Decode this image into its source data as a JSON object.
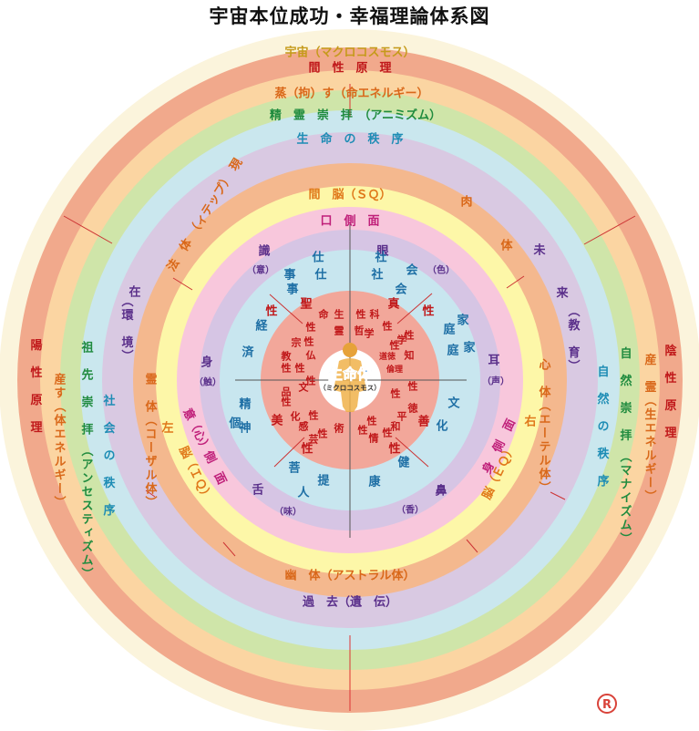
{
  "title": "宇宙本位成功・幸福理論体系図",
  "registered_mark": "R",
  "rings": [
    {
      "key": "ring1",
      "color": "#fbf4dc"
    },
    {
      "key": "ring2",
      "color": "#f1a98c"
    },
    {
      "key": "ring3",
      "color": "#fbd5a2"
    },
    {
      "key": "ring4",
      "color": "#cfe5a9"
    },
    {
      "key": "ring5",
      "color": "#cae7ee"
    },
    {
      "key": "ring6",
      "color": "#d9c9e2"
    },
    {
      "key": "ring7",
      "color": "#f4b88e"
    },
    {
      "key": "ring8",
      "color": "#fdf7a8"
    },
    {
      "key": "ring9",
      "color": "#f8c7dc"
    },
    {
      "key": "ring10",
      "color": "#d6c5e4"
    },
    {
      "key": "ring11",
      "color": "#c8e6ef"
    },
    {
      "key": "ring12",
      "color": "#f2a79a"
    },
    {
      "key": "core",
      "color": "#ffffff"
    }
  ],
  "center": {
    "main": "生命体",
    "sub": "（ミクロコスモス）"
  },
  "labels": [
    {
      "text": "宇宙（マクロコスモス）",
      "color": "#c59a1a",
      "sz": 13
    },
    {
      "text": "間　性　原　理",
      "color": "#c0181a",
      "sz": 13
    },
    {
      "text": "蒸（拘）す（命エネルギー）",
      "color": "#d9681a",
      "sz": 13
    },
    {
      "text": "精　霊　崇　拝　（アニミズム）",
      "color": "#1f8b3e",
      "sz": 13
    },
    {
      "text": "生　命　の　秩　序",
      "color": "#1e8db5",
      "sz": 13
    },
    {
      "text": "陽　性　原　理",
      "color": "#c0181a",
      "sz": 13
    },
    {
      "text": "産す（体エネルギー）",
      "color": "#d9681a",
      "sz": 13
    },
    {
      "text": "祖　先　崇　拝　（アンセスティズム）",
      "color": "#1f8b3e",
      "sz": 13
    },
    {
      "text": "社　会　の　秩　序",
      "color": "#1e8db5",
      "sz": 13
    },
    {
      "text": "陰　性　原　理",
      "color": "#c0181a",
      "sz": 13
    },
    {
      "text": "産　霊（生エネルギー）",
      "color": "#d9681a",
      "sz": 13
    },
    {
      "text": "自　然　崇　拝　（マナイズム）",
      "color": "#1f8b3e",
      "sz": 13
    },
    {
      "text": "自　然　の　秩　序",
      "color": "#1e8db5",
      "sz": 13
    },
    {
      "text": "法　体　（ィテップ）　現",
      "color": "#d9681a",
      "sz": 13
    },
    {
      "text": "在",
      "color": "#5a2f8a",
      "sz": 13
    },
    {
      "text": "（環　境）",
      "color": "#5a2f8a",
      "sz": 13
    },
    {
      "text": "肉",
      "color": "#d9681a",
      "sz": 13
    },
    {
      "text": "体",
      "color": "#d9681a",
      "sz": 13
    },
    {
      "text": "未",
      "color": "#5a2f8a",
      "sz": 13
    },
    {
      "text": "来",
      "color": "#5a2f8a",
      "sz": 13
    },
    {
      "text": "（教　育）",
      "color": "#5a2f8a",
      "sz": 13
    },
    {
      "text": "間　脳（ＳＱ）",
      "color": "#e0781a",
      "sz": 13
    },
    {
      "text": "口　側　面",
      "color": "#c0207a",
      "sz": 13
    },
    {
      "text": "霊　体（コーザル体）",
      "color": "#d9681a",
      "sz": 13
    },
    {
      "text": "脳（ＩＱ）",
      "color": "#e0781a",
      "sz": 13
    },
    {
      "text": "左",
      "color": "#e0781a",
      "sz": 13
    },
    {
      "text": "身",
      "color": "#5a2f8a",
      "sz": 13
    },
    {
      "text": "（触）",
      "color": "#5a2f8a",
      "sz": 10
    },
    {
      "text": "意（心）側　面",
      "color": "#c0207a",
      "sz": 13
    },
    {
      "text": "心　体（エーテル体）",
      "color": "#d9681a",
      "sz": 13
    },
    {
      "text": "脳（ＥＱ）",
      "color": "#e0781a",
      "sz": 13
    },
    {
      "text": "右",
      "color": "#e0781a",
      "sz": 13
    },
    {
      "text": "耳",
      "color": "#5a2f8a",
      "sz": 13
    },
    {
      "text": "（声）",
      "color": "#5a2f8a",
      "sz": 10
    },
    {
      "text": "身　側　面",
      "color": "#c0207a",
      "sz": 13
    },
    {
      "text": "幽　体（アストラル体）",
      "color": "#d9681a",
      "sz": 13
    },
    {
      "text": "過　去（遺　伝）",
      "color": "#5a2f8a",
      "sz": 13
    },
    {
      "text": "識",
      "color": "#5a2f8a",
      "sz": 13
    },
    {
      "text": "（意）",
      "color": "#5a2f8a",
      "sz": 10
    },
    {
      "text": "眼",
      "color": "#5a2f8a",
      "sz": 13
    },
    {
      "text": "（色）",
      "color": "#5a2f8a",
      "sz": 10
    },
    {
      "text": "舌",
      "color": "#5a2f8a",
      "sz": 13
    },
    {
      "text": "（味）",
      "color": "#5a2f8a",
      "sz": 10
    },
    {
      "text": "鼻",
      "color": "#5a2f8a",
      "sz": 13
    },
    {
      "text": "（香）",
      "color": "#5a2f8a",
      "sz": 10
    },
    {
      "text": "仕",
      "color": "#1e6fa5",
      "sz": 13
    },
    {
      "text": "事",
      "color": "#1e6fa5",
      "sz": 13
    },
    {
      "text": "仕",
      "color": "#1e6fa5",
      "sz": 13
    },
    {
      "text": "事",
      "color": "#1e6fa5",
      "sz": 13
    },
    {
      "text": "社",
      "color": "#1e6fa5",
      "sz": 13
    },
    {
      "text": "会",
      "color": "#1e6fa5",
      "sz": 13
    },
    {
      "text": "社",
      "color": "#1e6fa5",
      "sz": 13
    },
    {
      "text": "会",
      "color": "#1e6fa5",
      "sz": 13
    },
    {
      "text": "家",
      "color": "#1e6fa5",
      "sz": 13
    },
    {
      "text": "庭",
      "color": "#1e6fa5",
      "sz": 13
    },
    {
      "text": "家",
      "color": "#1e6fa5",
      "sz": 13
    },
    {
      "text": "庭",
      "color": "#1e6fa5",
      "sz": 13
    },
    {
      "text": "文",
      "color": "#1e6fa5",
      "sz": 13
    },
    {
      "text": "化",
      "color": "#1e6fa5",
      "sz": 13
    },
    {
      "text": "健",
      "color": "#1e6fa5",
      "sz": 13
    },
    {
      "text": "康",
      "color": "#1e6fa5",
      "sz": 13
    },
    {
      "text": "人",
      "color": "#1e6fa5",
      "sz": 13
    },
    {
      "text": "提",
      "color": "#1e6fa5",
      "sz": 13
    },
    {
      "text": "菩",
      "color": "#1e6fa5",
      "sz": 13
    },
    {
      "text": "個",
      "color": "#1e6fa5",
      "sz": 13
    },
    {
      "text": "精",
      "color": "#1e6fa5",
      "sz": 13
    },
    {
      "text": "神",
      "color": "#1e6fa5",
      "sz": 13
    },
    {
      "text": "経",
      "color": "#1e6fa5",
      "sz": 13
    },
    {
      "text": "済",
      "color": "#1e6fa5",
      "sz": 13
    },
    {
      "text": "聖",
      "color": "#c0181a",
      "sz": 13
    },
    {
      "text": "真",
      "color": "#c0181a",
      "sz": 13
    },
    {
      "text": "性",
      "color": "#c0181a",
      "sz": 13
    },
    {
      "text": "善",
      "color": "#c0181a",
      "sz": 13
    },
    {
      "text": "性",
      "color": "#c0181a",
      "sz": 13
    },
    {
      "text": "美",
      "color": "#c0181a",
      "sz": 13
    },
    {
      "text": "性",
      "color": "#c0181a",
      "sz": 13
    },
    {
      "text": "性",
      "color": "#c0181a",
      "sz": 13
    },
    {
      "text": "命",
      "color": "#c0181a",
      "sz": 11
    },
    {
      "text": "生",
      "color": "#c0181a",
      "sz": 11
    },
    {
      "text": "性",
      "color": "#c0181a",
      "sz": 11
    },
    {
      "text": "霊",
      "color": "#c0181a",
      "sz": 11
    },
    {
      "text": "性",
      "color": "#c0181a",
      "sz": 11
    },
    {
      "text": "宗",
      "color": "#c0181a",
      "sz": 11
    },
    {
      "text": "仏",
      "color": "#c0181a",
      "sz": 11
    },
    {
      "text": "教",
      "color": "#c0181a",
      "sz": 11
    },
    {
      "text": "性",
      "color": "#c0181a",
      "sz": 11
    },
    {
      "text": "性",
      "color": "#c0181a",
      "sz": 11
    },
    {
      "text": "性",
      "color": "#c0181a",
      "sz": 11
    },
    {
      "text": "品",
      "color": "#c0181a",
      "sz": 11
    },
    {
      "text": "文",
      "color": "#c0181a",
      "sz": 11
    },
    {
      "text": "性",
      "color": "#c0181a",
      "sz": 11
    },
    {
      "text": "化",
      "color": "#c0181a",
      "sz": 11
    },
    {
      "text": "性",
      "color": "#c0181a",
      "sz": 11
    },
    {
      "text": "感",
      "color": "#c0181a",
      "sz": 11
    },
    {
      "text": "性",
      "color": "#c0181a",
      "sz": 11
    },
    {
      "text": "芸",
      "color": "#c0181a",
      "sz": 11
    },
    {
      "text": "術",
      "color": "#c0181a",
      "sz": 11
    },
    {
      "text": "性",
      "color": "#c0181a",
      "sz": 11
    },
    {
      "text": "性",
      "color": "#c0181a",
      "sz": 11
    },
    {
      "text": "情",
      "color": "#c0181a",
      "sz": 11
    },
    {
      "text": "性",
      "color": "#c0181a",
      "sz": 11
    },
    {
      "text": "和",
      "color": "#c0181a",
      "sz": 11
    },
    {
      "text": "平",
      "color": "#c0181a",
      "sz": 11
    },
    {
      "text": "性",
      "color": "#c0181a",
      "sz": 11
    },
    {
      "text": "性",
      "color": "#c0181a",
      "sz": 11
    },
    {
      "text": "徳",
      "color": "#c0181a",
      "sz": 11
    },
    {
      "text": "倫理",
      "color": "#c0181a",
      "sz": 9
    },
    {
      "text": "道徳",
      "color": "#c0181a",
      "sz": 9
    },
    {
      "text": "性",
      "color": "#c0181a",
      "sz": 11
    },
    {
      "text": "知",
      "color": "#c0181a",
      "sz": 11
    },
    {
      "text": "性",
      "color": "#c0181a",
      "sz": 11
    },
    {
      "text": "学",
      "color": "#c0181a",
      "sz": 11
    },
    {
      "text": "性",
      "color": "#c0181a",
      "sz": 11
    },
    {
      "text": "科",
      "color": "#c0181a",
      "sz": 11
    },
    {
      "text": "哲",
      "color": "#c0181a",
      "sz": 11
    },
    {
      "text": "学",
      "color": "#c0181a",
      "sz": 11
    },
    {
      "text": "性",
      "color": "#c0181a",
      "sz": 11
    },
    {
      "text": "理",
      "color": "#c0181a",
      "sz": 11
    },
    {
      "text": "性",
      "color": "#c0181a",
      "sz": 11
    }
  ]
}
